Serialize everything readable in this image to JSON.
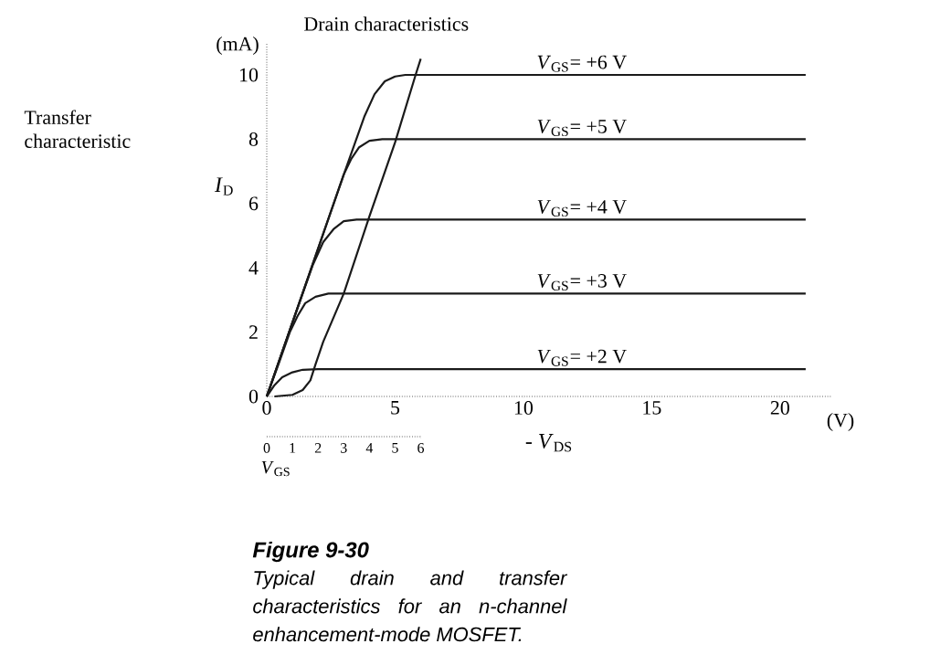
{
  "chart_data": {
    "type": "line",
    "xlabel": "- *V*$_{DS}$",
    "ylabel": "*I*$_{D}$",
    "x2label": "*V*$_{GS}$",
    "xlim": [
      0,
      22
    ],
    "ylim": [
      0,
      11
    ],
    "xticks": [
      0,
      5,
      10,
      15,
      20
    ],
    "yticks": [
      0,
      2,
      4,
      6,
      8,
      10
    ],
    "x2lim": [
      0,
      6
    ],
    "x2ticks": [
      0,
      1,
      2,
      3,
      4,
      5,
      6
    ],
    "series": [
      {
        "name": "*V*$_{GS}$= +6 V",
        "color": "#1a1a1a",
        "x": [
          0,
          1,
          2,
          3,
          3.8,
          4.2,
          4.6,
          5.0,
          5.4,
          5.9,
          21
        ],
        "values": [
          0,
          2.3,
          4.6,
          6.9,
          8.7,
          9.4,
          9.8,
          9.95,
          10,
          10,
          10
        ]
      },
      {
        "name": "*V*$_{GS}$= +5 V",
        "color": "#1a1a1a",
        "x": [
          0,
          1,
          2,
          3,
          3.3,
          3.6,
          4.0,
          4.5,
          21
        ],
        "values": [
          0,
          2.3,
          4.6,
          6.9,
          7.4,
          7.75,
          7.95,
          8,
          8
        ]
      },
      {
        "name": "*V*$_{GS}$= +4 V",
        "color": "#1a1a1a",
        "x": [
          0,
          1,
          1.8,
          2.2,
          2.6,
          3.0,
          3.5,
          21
        ],
        "values": [
          0,
          2.3,
          4.1,
          4.8,
          5.2,
          5.45,
          5.5,
          5.5
        ]
      },
      {
        "name": "*V*$_{GS}$= +3 V",
        "color": "#1a1a1a",
        "x": [
          0,
          0.5,
          0.9,
          1.2,
          1.5,
          1.9,
          2.4,
          21
        ],
        "values": [
          0,
          1.1,
          2.0,
          2.5,
          2.9,
          3.1,
          3.2,
          3.2
        ]
      },
      {
        "name": "*V*$_{GS}$= +2 V",
        "color": "#1a1a1a",
        "x": [
          0,
          0.3,
          0.6,
          1.0,
          1.4,
          2.0,
          21
        ],
        "values": [
          0,
          0.35,
          0.6,
          0.75,
          0.83,
          0.85,
          0.85
        ]
      },
      {
        "color": "#1a1a1a",
        "axis": "x2",
        "x": [
          0.3,
          1.0,
          1.4,
          1.7,
          1.9,
          2.2,
          3.0,
          4.0,
          5.0,
          5.8,
          6.0
        ],
        "values": [
          0,
          0.05,
          0.2,
          0.5,
          1.0,
          1.7,
          3.2,
          5.6,
          7.9,
          10,
          10.5
        ]
      }
    ],
    "annotations": [
      "Drain characteristics",
      "Transfer characteristic",
      "(mA)",
      "(V)",
      "Figure 9-30",
      "Typical drain and transfer characteristics for an n-channel enhancement-mode MOSFET."
    ]
  }
}
